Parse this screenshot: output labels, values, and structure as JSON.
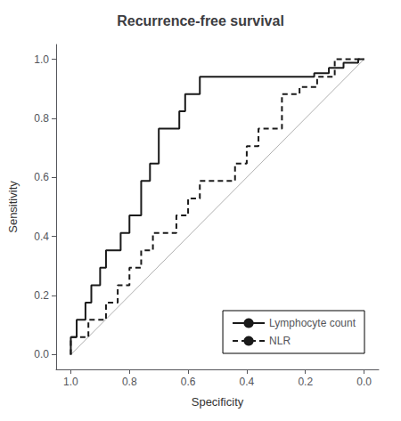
{
  "chart_data": {
    "type": "line",
    "title": "Recurrence-free survival",
    "xlabel": "Specificity",
    "ylabel": "Sensitivity",
    "xlim": [
      1.05,
      -0.05
    ],
    "ylim": [
      -0.05,
      1.05
    ],
    "xticks": [
      {
        "value": 1.0,
        "label": "1.0"
      },
      0.8,
      0.6,
      0.4,
      0.2,
      {
        "value": 0.0,
        "label": "0.0"
      }
    ],
    "yticks": [
      {
        "value": 0.0,
        "label": "0.0"
      },
      0.2,
      0.4,
      0.6,
      0.8,
      {
        "value": 1.0,
        "label": "1.0"
      }
    ],
    "grid": false,
    "legend": "lower right",
    "series": [
      {
        "color": "#b0b0b0",
        "line_style": "solid",
        "x": [
          0.0,
          1.0
        ],
        "values": [
          1.0,
          0.0
        ]
      },
      {
        "name": "Lymphocyte count",
        "color": "#1a1a1a",
        "line_style": "solid",
        "x": [
          1.0,
          1.0,
          0.98,
          0.98,
          0.95,
          0.95,
          0.93,
          0.93,
          0.9,
          0.9,
          0.88,
          0.88,
          0.83,
          0.83,
          0.8,
          0.8,
          0.76,
          0.76,
          0.73,
          0.73,
          0.7,
          0.7,
          0.63,
          0.63,
          0.61,
          0.61,
          0.56,
          0.56,
          0.51,
          0.51,
          0.17,
          0.17,
          0.12,
          0.12,
          0.07,
          0.07,
          0.02,
          0.02,
          0.0
        ],
        "values": [
          0.0,
          0.059,
          0.059,
          0.118,
          0.118,
          0.176,
          0.176,
          0.235,
          0.235,
          0.294,
          0.294,
          0.353,
          0.353,
          0.412,
          0.412,
          0.471,
          0.471,
          0.588,
          0.588,
          0.647,
          0.647,
          0.765,
          0.765,
          0.824,
          0.824,
          0.882,
          0.882,
          0.941,
          0.941,
          0.941,
          0.941,
          0.953,
          0.953,
          0.971,
          0.971,
          0.988,
          0.988,
          1.0,
          1.0
        ]
      },
      {
        "name": "NLR",
        "color": "#1a1a1a",
        "line_style": "dashed",
        "x": [
          1.0,
          1.0,
          0.94,
          0.94,
          0.88,
          0.88,
          0.84,
          0.84,
          0.8,
          0.8,
          0.76,
          0.76,
          0.72,
          0.72,
          0.64,
          0.64,
          0.6,
          0.6,
          0.56,
          0.56,
          0.44,
          0.44,
          0.4,
          0.4,
          0.36,
          0.36,
          0.28,
          0.28,
          0.22,
          0.22,
          0.16,
          0.16,
          0.1,
          0.1,
          0.0
        ],
        "values": [
          0.0,
          0.059,
          0.059,
          0.118,
          0.118,
          0.176,
          0.176,
          0.235,
          0.235,
          0.294,
          0.294,
          0.353,
          0.353,
          0.412,
          0.412,
          0.471,
          0.471,
          0.529,
          0.529,
          0.588,
          0.588,
          0.647,
          0.647,
          0.706,
          0.706,
          0.765,
          0.765,
          0.882,
          0.882,
          0.906,
          0.906,
          0.941,
          0.941,
          1.0,
          1.0
        ]
      }
    ]
  }
}
